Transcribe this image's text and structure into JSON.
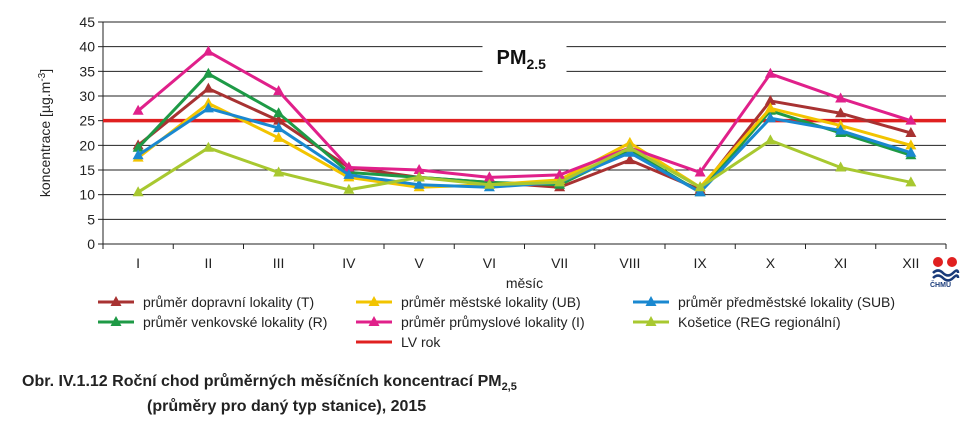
{
  "chart_data": {
    "type": "line",
    "title_main": "PM",
    "title_sub": "2.5",
    "xlabel": "měsíc",
    "ylabel": "koncentrace [µg.m",
    "ylabel_sup": "-3",
    "ylabel_end": "]",
    "ylim": [
      0,
      45
    ],
    "yticks": [
      "0",
      "5",
      "10",
      "15",
      "20",
      "25",
      "30",
      "35",
      "40",
      "45"
    ],
    "categories": [
      "I",
      "II",
      "III",
      "IV",
      "V",
      "VI",
      "VII",
      "VIII",
      "IX",
      "X",
      "XI",
      "XII"
    ],
    "grid": true,
    "series": [
      {
        "name": "průměr dopravní lokality (T)",
        "color": "#a83232",
        "values": [
          20,
          31.5,
          25,
          15.5,
          13.5,
          12.5,
          11.5,
          17,
          11,
          29,
          26.5,
          22.5
        ]
      },
      {
        "name": "průměr venkovské lokality (R)",
        "color": "#1e9a46",
        "values": [
          19.5,
          34.5,
          26.5,
          14.5,
          13.5,
          12.5,
          12,
          19,
          10.5,
          27,
          22.5,
          18
        ]
      },
      {
        "name": "průměr městské lokality (UB)",
        "color": "#f2c400",
        "values": [
          17.5,
          28.5,
          21.5,
          13.5,
          11.5,
          12,
          13,
          20.5,
          11.5,
          27.5,
          24,
          20
        ]
      },
      {
        "name": "průměr průmyslové lokality (I)",
        "color": "#e0208a",
        "values": [
          27,
          39,
          31,
          15.5,
          15,
          13.5,
          14,
          19.5,
          14.5,
          34.5,
          29.5,
          25
        ]
      },
      {
        "name": "průměr předměstské lokality (SUB)",
        "color": "#1a88d0",
        "values": [
          18,
          27.5,
          23.5,
          14,
          12,
          11.5,
          12.5,
          18.5,
          10.5,
          25.5,
          23,
          18.5
        ]
      },
      {
        "name": "Košetice (REG regionální)",
        "color": "#a8c830",
        "values": [
          10.5,
          19.5,
          14.5,
          11,
          13.5,
          12,
          12.5,
          19.5,
          11.5,
          21,
          15.5,
          12.5
        ]
      }
    ],
    "limit_line": {
      "name": "LV rok",
      "value": 25,
      "color": "#e02020"
    },
    "legend_placement": "bottom"
  },
  "legend": {
    "items": [
      {
        "label": "průměr dopravní lokality (T)",
        "color": "#a83232",
        "marker": true
      },
      {
        "label": "průměr městské lokality (UB)",
        "color": "#f2c400",
        "marker": true
      },
      {
        "label": "průměr předměstské lokality (SUB)",
        "color": "#1a88d0",
        "marker": true
      },
      {
        "label": "průměr venkovské lokality (R)",
        "color": "#1e9a46",
        "marker": true
      },
      {
        "label": "průměr průmyslové lokality (I)",
        "color": "#e0208a",
        "marker": true
      },
      {
        "label": "Košetice (REG regionální)",
        "color": "#a8c830",
        "marker": true
      },
      {
        "label": "LV rok",
        "color": "#e02020",
        "marker": false
      }
    ]
  },
  "caption": {
    "line1": "Obr. IV.1.12  Roční chod průměrných měsíčních koncentrací PM",
    "line1_sub": "2,5",
    "line2": "(průměry pro daný typ stanice), 2015"
  },
  "logo": {
    "icon": "chmu-logo-icon",
    "text": "ČHMÚ",
    "colors": [
      "#e02020",
      "#1a3b7a"
    ]
  }
}
